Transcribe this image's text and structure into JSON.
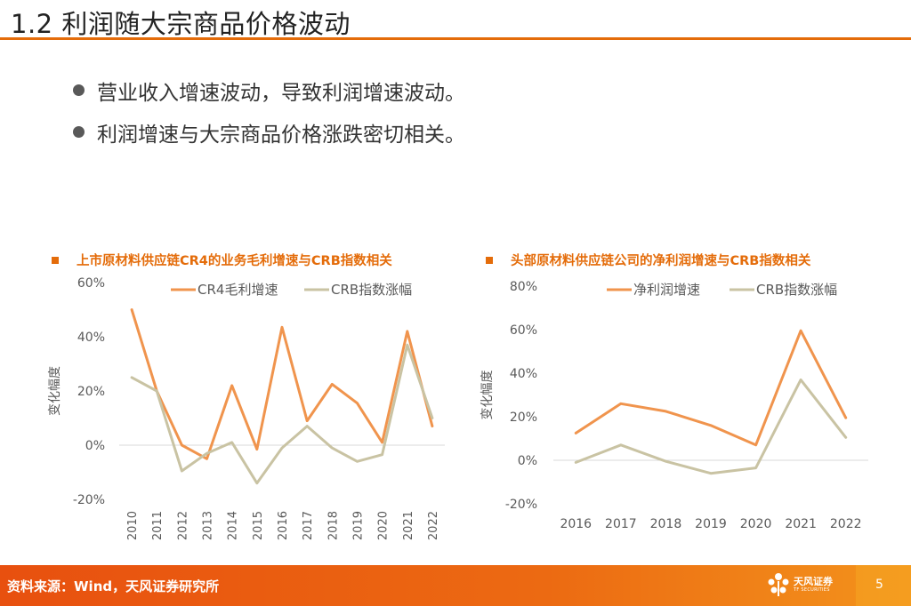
{
  "title": "1.2 利润随大宗商品价格波动",
  "bullets": [
    "营业收入增速波动，导致利润增速波动。",
    "利润增速与大宗商品价格涨跌密切相关。"
  ],
  "colors": {
    "accent": "#e46c0a",
    "series1": "#f0944d",
    "series2": "#c9c3a3"
  },
  "chart_data": [
    {
      "type": "line",
      "title": "上市原材料供应链CR4的业务毛利增速与CRB指数相关",
      "ylabel": "变化幅度",
      "ylim": [
        -20,
        60
      ],
      "yticks": [
        "60%",
        "40%",
        "20%",
        "0%",
        "-20%"
      ],
      "ytick_values": [
        60,
        40,
        20,
        0,
        -20
      ],
      "categories": [
        "2010",
        "2011",
        "2012",
        "2013",
        "2014",
        "2015",
        "2016",
        "2017",
        "2018",
        "2019",
        "2020",
        "2021",
        "2022"
      ],
      "series": [
        {
          "name": "CR4毛利增速",
          "values": [
            50,
            20,
            0,
            -5,
            22,
            -1.5,
            43.5,
            9,
            22.5,
            15.5,
            1,
            42,
            7
          ]
        },
        {
          "name": "CRB指数涨幅",
          "values": [
            25,
            20,
            -9.5,
            -3,
            1,
            -14,
            -1,
            7,
            -1,
            -6,
            -3.5,
            37,
            10
          ]
        }
      ],
      "legend": "top"
    },
    {
      "type": "line",
      "title": "头部原材料供应链公司的净利润增速与CRB指数相关",
      "ylabel": "变化幅度",
      "ylim": [
        -20,
        80
      ],
      "yticks": [
        "80%",
        "60%",
        "40%",
        "20%",
        "0%",
        "-20%"
      ],
      "ytick_values": [
        80,
        60,
        40,
        20,
        0,
        -20
      ],
      "categories": [
        "2016",
        "2017",
        "2018",
        "2019",
        "2020",
        "2021",
        "2022"
      ],
      "series": [
        {
          "name": "净利润增速",
          "values": [
            12.5,
            26,
            22.5,
            16,
            7,
            59.5,
            19.5
          ]
        },
        {
          "name": "CRB指数涨幅",
          "values": [
            -1,
            7,
            -0.5,
            -6,
            -3.5,
            37,
            10.5
          ]
        }
      ],
      "legend": "top"
    }
  ],
  "footer": {
    "source": "资料来源：Wind，天风证券研究所",
    "logo_cn": "天风证券",
    "logo_en": "TF SECURITIES",
    "page_number": "5"
  }
}
